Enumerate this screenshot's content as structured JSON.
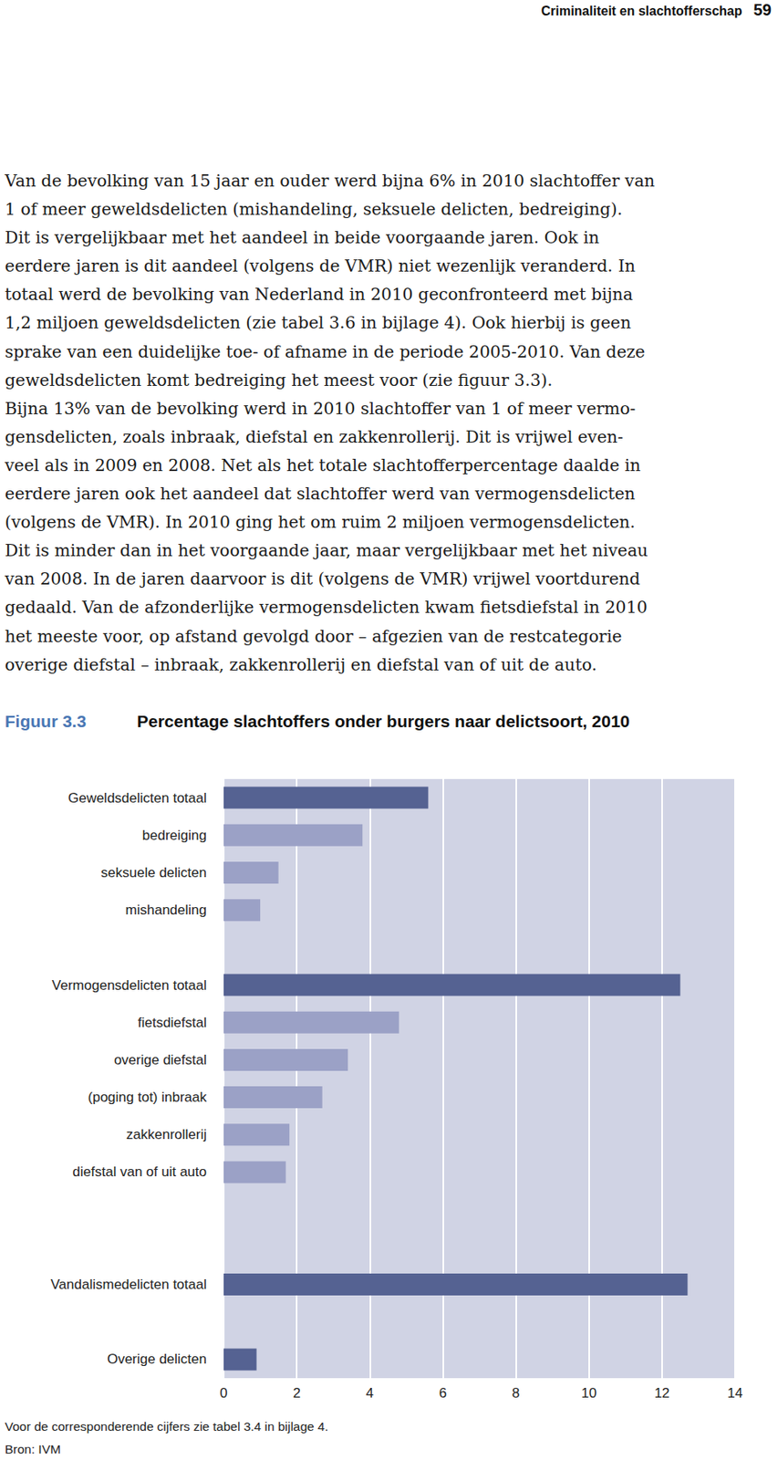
{
  "header": {
    "running_title": "Criminaliteit en slachtofferschap",
    "page_number": 59
  },
  "body": {
    "paragraphs": [
      [
        "Van de bevolking van 15 jaar en ouder werd bijna 6% in 2010 slachtoffer van",
        "1 of meer geweldsdelicten (mishandeling, seksuele delicten, bedreiging).",
        "Dit is vergelijkbaar met het aandeel in beide voorgaande jaren. Ook in",
        "eerdere jaren is dit aandeel (volgens de VMR) niet wezenlijk veranderd. In",
        "totaal werd de bevolking van Nederland in 2010 geconfronteerd met bijna",
        "1,2 miljoen geweldsdelicten (zie tabel 3.6 in bijlage 4). Ook hierbij is geen",
        "sprake van een duidelijke toe- of afname in de periode 2005-2010. Van deze",
        "geweldsdelicten komt bedreiging het meest voor (zie figuur 3.3)."
      ],
      [
        "Bijna 13% van de bevolking werd in 2010 slachtoffer van 1 of meer vermo-",
        "gensdelicten, zoals inbraak, diefstal en zakkenrollerij. Dit is vrijwel even-",
        "veel als in 2009 en 2008. Net als het totale slachtofferpercentage daalde in",
        "eerdere jaren ook het aandeel dat slachtoffer werd van vermogensdelicten",
        "(volgens de VMR). In 2010 ging het om ruim 2 miljoen vermogensdelicten.",
        "Dit is minder dan in het voorgaande jaar, maar vergelijkbaar met het niveau",
        "van 2008. In de jaren daarvoor is dit (volgens de VMR) vrijwel voortdurend",
        "gedaald. Van de afzonderlijke vermogensdelicten kwam fietsdiefstal in 2010",
        "het meeste voor, op afstand gevolgd door – afgezien van de restcategorie",
        "overige diefstal – inbraak, zakkenrollerij en diefstal van of uit de auto."
      ]
    ]
  },
  "figure": {
    "label": "Figuur 3.3",
    "note": "Voor de corresponderende cijfers zie tabel 3.4 in bijlage 4.",
    "source": "Bron: IVM"
  },
  "chart_data": {
    "type": "bar",
    "orientation": "horizontal",
    "title": "Percentage slachtoffers onder burgers naar delictsoort, 2010",
    "categories": [
      "Geweldsdelicten totaal",
      "bedreiging",
      "seksuele delicten",
      "mishandeling",
      null,
      "Vermogensdelicten totaal",
      "fietsdiefstal",
      "overige diefstal",
      "(poging tot) inbraak",
      "zakkenrollerij",
      "diefstal van of uit auto",
      null,
      null,
      "Vandalismedelicten totaal",
      null,
      "Overige delicten"
    ],
    "values": [
      5.6,
      3.8,
      1.5,
      1.0,
      null,
      12.5,
      4.8,
      3.4,
      2.7,
      1.8,
      1.7,
      null,
      null,
      12.7,
      null,
      0.9
    ],
    "colors": [
      "#556292",
      "#9ba1c6",
      "#9ba1c6",
      "#9ba1c6",
      null,
      "#556292",
      "#9ba1c6",
      "#9ba1c6",
      "#9ba1c6",
      "#9ba1c6",
      "#9ba1c6",
      null,
      null,
      "#556292",
      null,
      "#556292"
    ],
    "xlim": [
      0,
      14
    ],
    "xticks": [
      0,
      2,
      4,
      6,
      8,
      10,
      12,
      14
    ],
    "grid": true
  }
}
